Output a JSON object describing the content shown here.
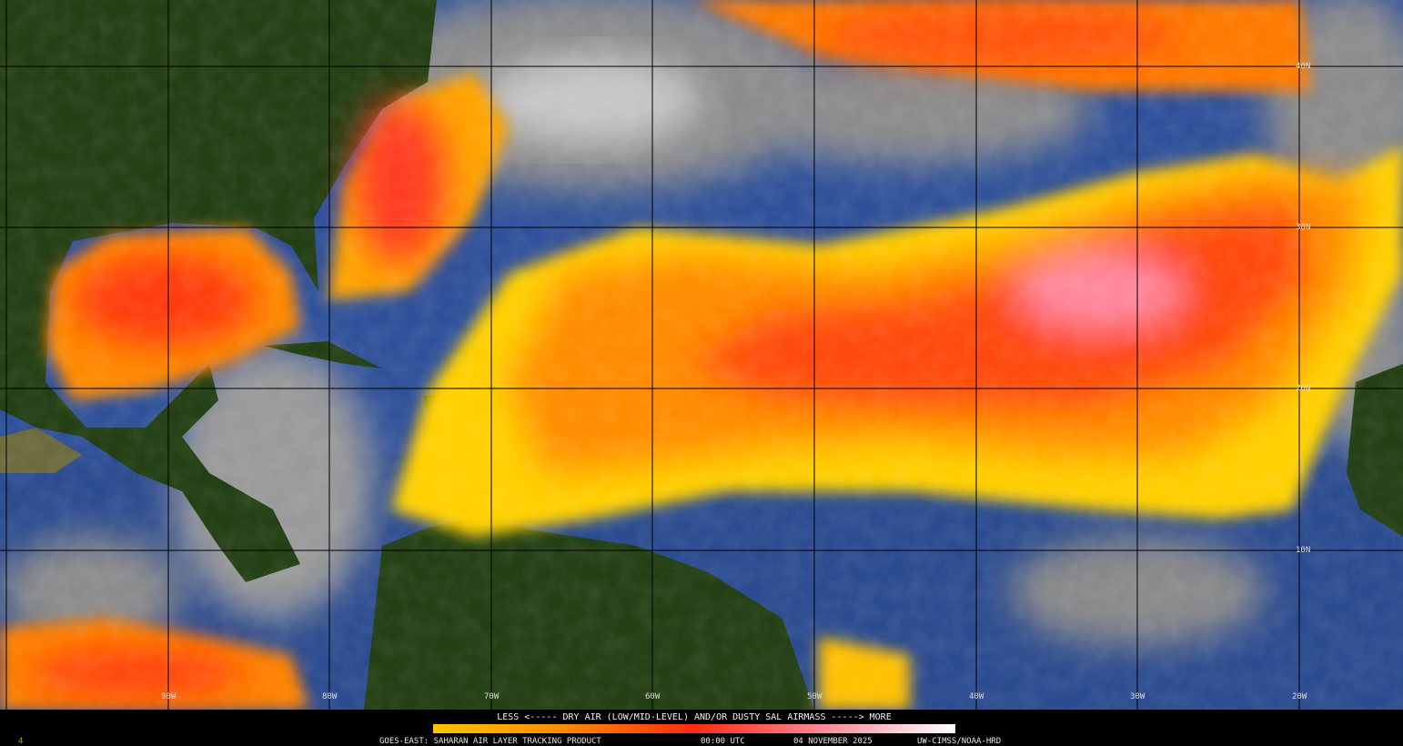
{
  "map": {
    "latitude_labels": [
      "40N",
      "30N",
      "20N",
      "10N"
    ],
    "longitude_labels": [
      "90W",
      "80W",
      "70W",
      "60W",
      "50W",
      "40W",
      "30W",
      "20W"
    ]
  },
  "legend": {
    "caption": "LESS <----- DRY AIR (LOW/MID-LEVEL) AND/OR DUSTY SAL AIRMASS -----> MORE"
  },
  "footer": {
    "frame": "4",
    "product": "GOES-EAST: SAHARAN AIR LAYER TRACKING PRODUCT",
    "time": "00:00 UTC",
    "date": "04 NOVEMBER 2025",
    "credit": "UW-CIMSS/NOAA-HRD"
  }
}
